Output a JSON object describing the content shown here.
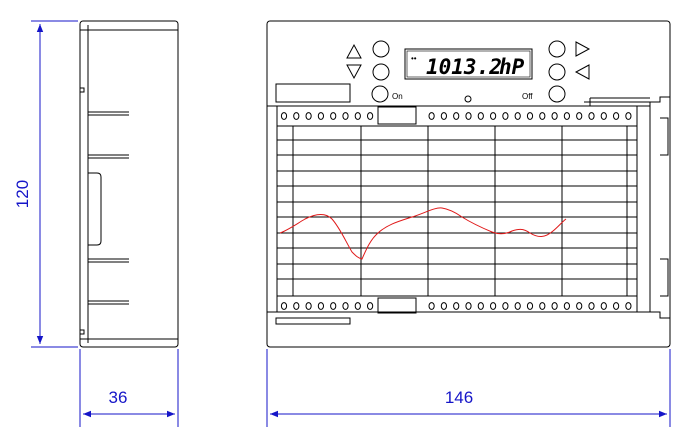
{
  "dimensions": {
    "height": "120",
    "depth": "36",
    "width": "146"
  },
  "display": {
    "value": "1013.2",
    "unit": "hP",
    "indicator": "••"
  },
  "buttons": {
    "on_label": "On",
    "off_label": "Off"
  },
  "colors": {
    "dimension": "#1515c8",
    "trace": "#e01a1a",
    "outline": "#000000"
  }
}
